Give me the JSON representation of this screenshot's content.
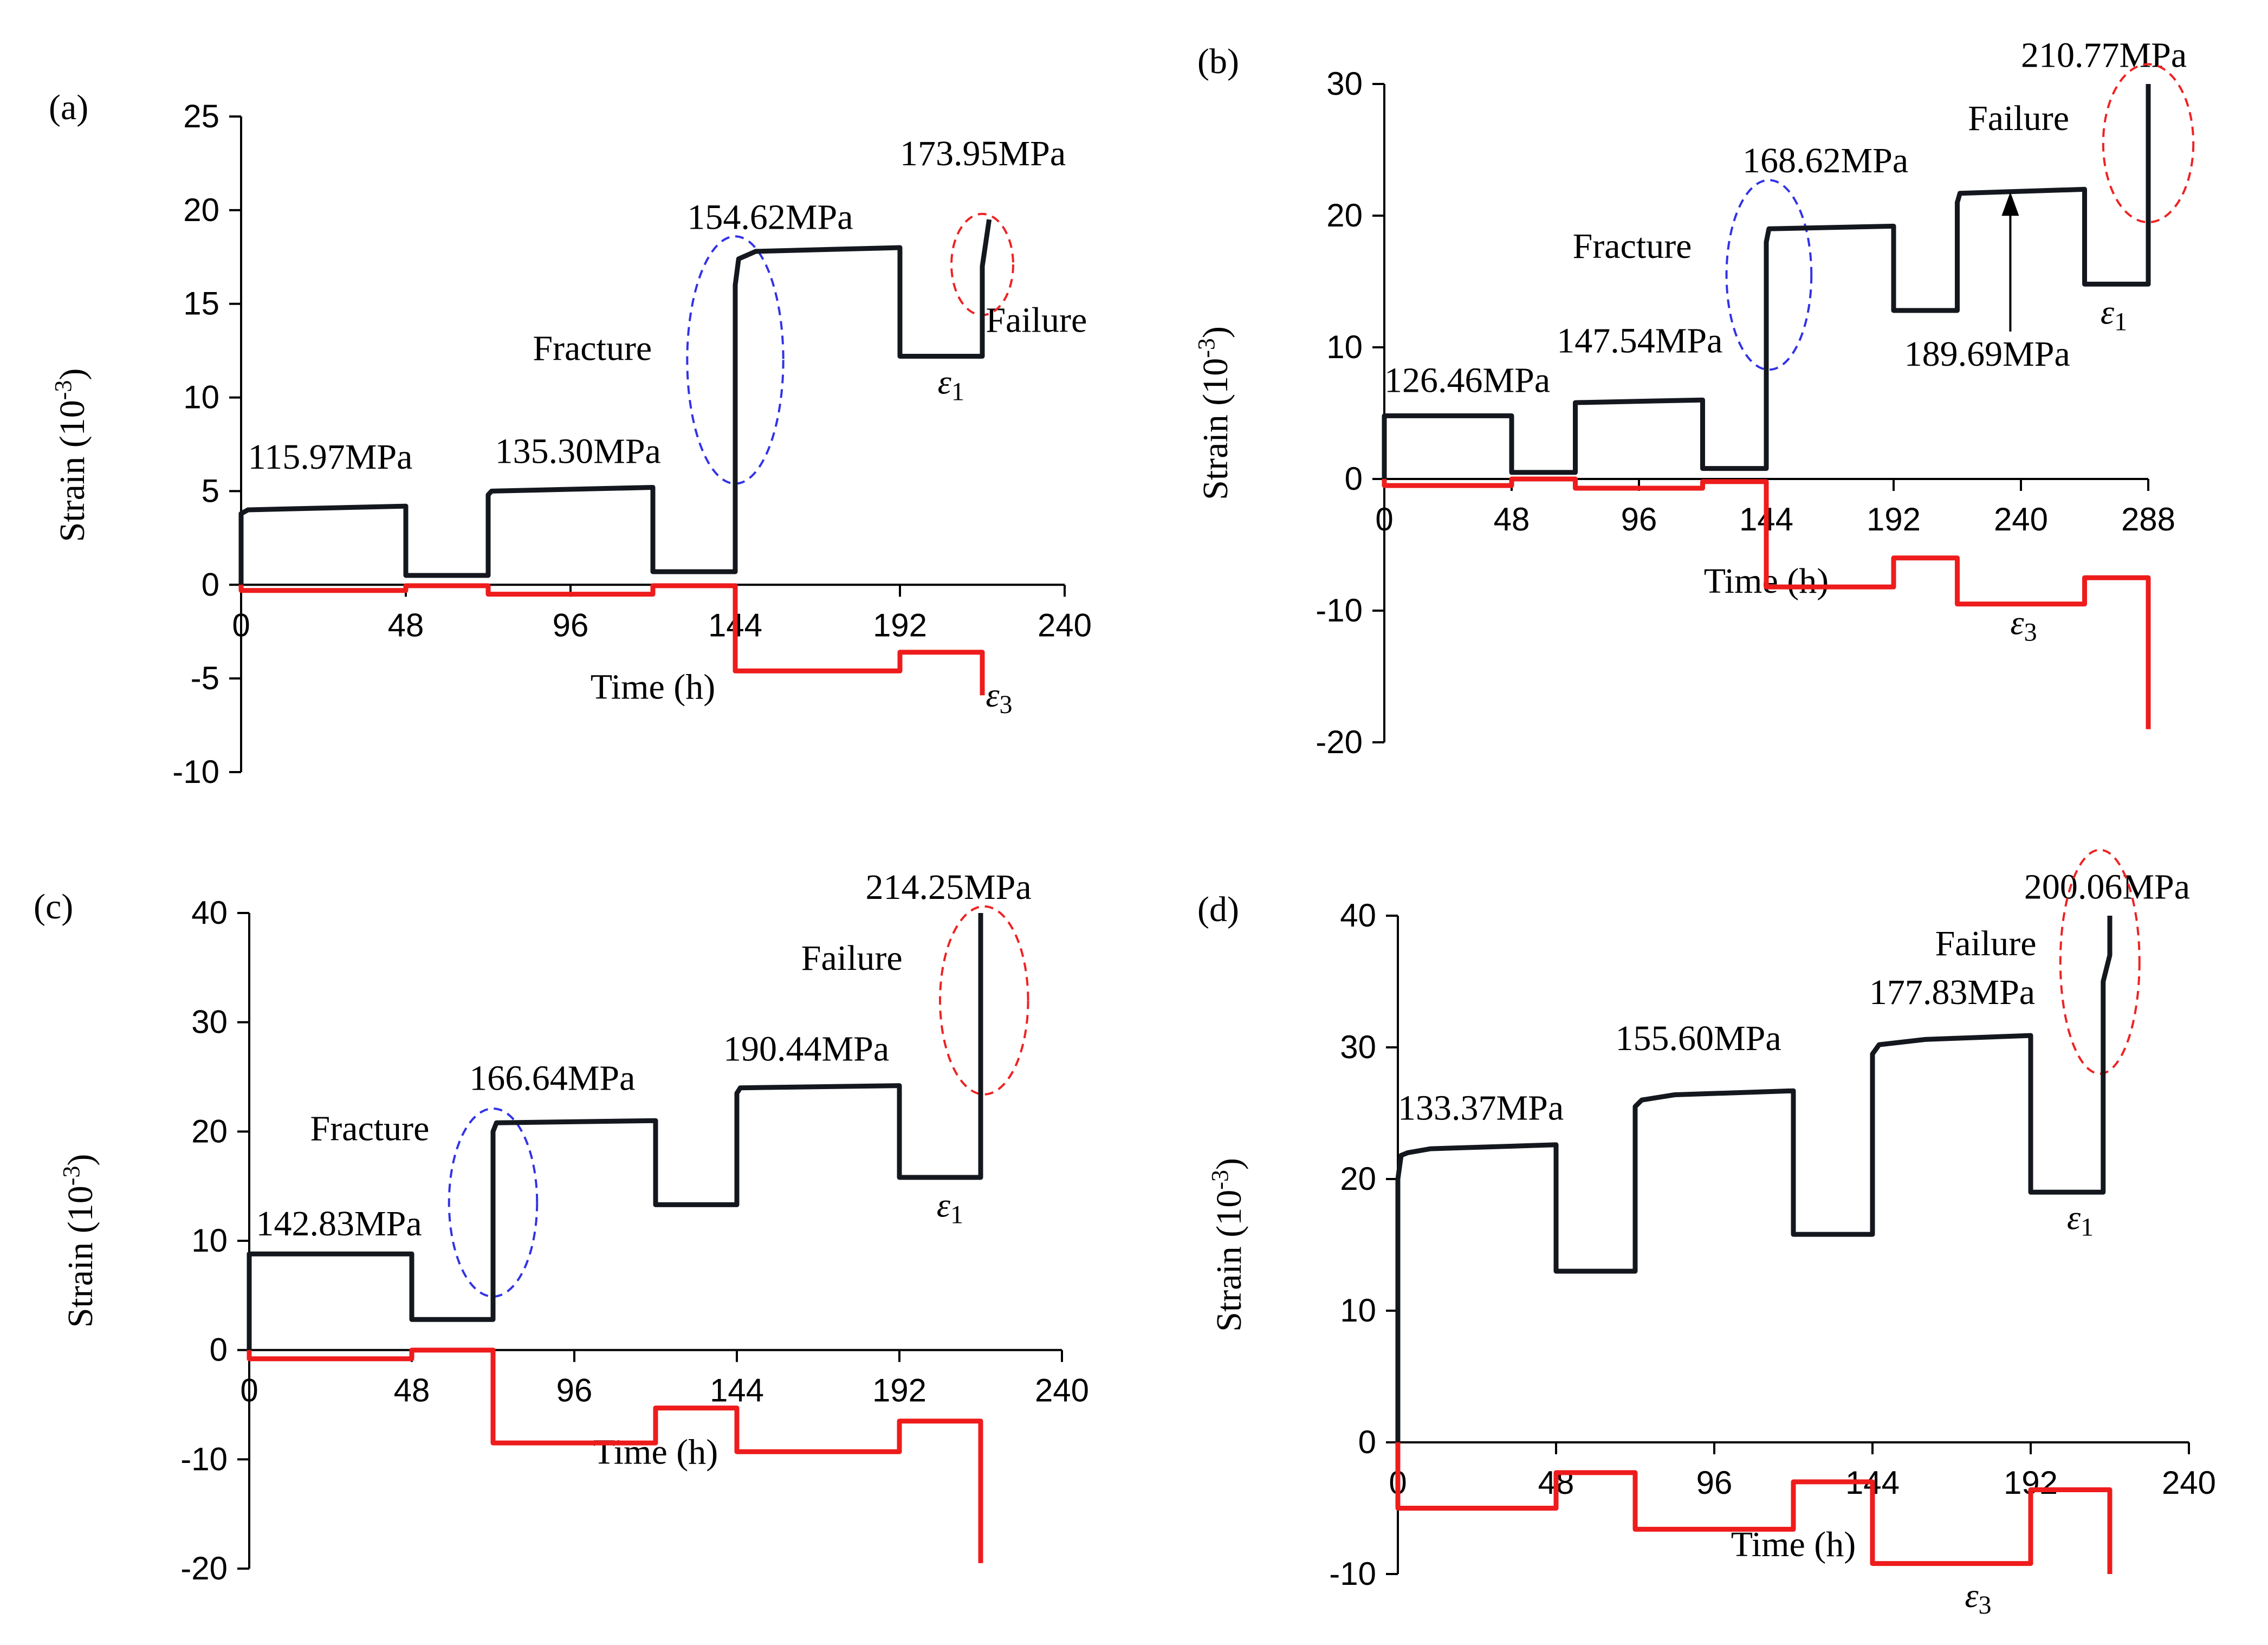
{
  "colors": {
    "e1": "#14181e",
    "e3": "#ee1c1c",
    "fracture_ellipse": "#3232e6",
    "failure_ellipse": "#ee2222",
    "axis": "#000000"
  },
  "chart_data": [
    {
      "panel": "(a)",
      "type": "line",
      "xlabel": "Time (h)",
      "ylabel": "Strain (10",
      "ylabel_sup": "-3",
      "ylabel_end": ")",
      "xlim": [
        0,
        240
      ],
      "xticks": [
        0,
        48,
        96,
        144,
        192,
        240
      ],
      "ylim": [
        -10,
        25
      ],
      "yticks": [
        -10,
        -5,
        0,
        5,
        10,
        15,
        20,
        25
      ],
      "series": [
        {
          "key": "e1",
          "x": [
            0,
            0,
            2,
            48,
            48,
            72,
            72,
            73,
            120,
            120,
            144,
            144,
            145,
            150,
            192,
            192,
            216,
            216,
            218
          ],
          "y": [
            0,
            3.8,
            4,
            4.2,
            0.5,
            0.5,
            4.8,
            5.0,
            5.2,
            0.7,
            0.7,
            16,
            17.4,
            17.8,
            18,
            12.2,
            12.2,
            17,
            19.5
          ]
        },
        {
          "key": "e3",
          "x": [
            0,
            0,
            48,
            48,
            72,
            72,
            120,
            120,
            144,
            144,
            192,
            192,
            216,
            216
          ],
          "y": [
            0,
            -0.3,
            -0.3,
            -0.05,
            -0.05,
            -0.5,
            -0.5,
            -0.05,
            -0.05,
            -4.6,
            -4.6,
            -3.6,
            -3.6,
            -5.9
          ]
        }
      ],
      "annotations": [
        {
          "text": "115.97MPa",
          "x": 2,
          "y": 6.2
        },
        {
          "text": "135.30MPa",
          "x": 74,
          "y": 6.5
        },
        {
          "text": "154.62MPa",
          "x": 130,
          "y": 19
        },
        {
          "text": "173.95MPa",
          "x": 192,
          "y": 22.4
        },
        {
          "text": "Fracture",
          "x": 85,
          "y": 12
        },
        {
          "text": "Failure",
          "x": 217,
          "y": 13.5
        }
      ],
      "fracture_ellipse": {
        "cx": 144,
        "cy": 12,
        "rx": 14,
        "ry": 6.6
      },
      "failure_ellipse": {
        "cx": 216,
        "cy": 17.1,
        "rx": 9,
        "ry": 2.7
      },
      "eps1_label": {
        "x": 203,
        "y": 10.2
      },
      "eps3_label": {
        "x": 217,
        "y": -6.5
      }
    },
    {
      "panel": "(b)",
      "type": "line",
      "xlabel": "Time (h)",
      "ylabel": "Strain (10",
      "ylabel_sup": "-3",
      "ylabel_end": ")",
      "xlim": [
        0,
        288
      ],
      "xticks": [
        0,
        48,
        96,
        144,
        192,
        240,
        288
      ],
      "ylim": [
        -20,
        30
      ],
      "yticks": [
        -20,
        -10,
        0,
        10,
        20,
        30
      ],
      "series": [
        {
          "key": "e1",
          "x": [
            0,
            0,
            48,
            48,
            72,
            72,
            120,
            120,
            144,
            144,
            145,
            192,
            192,
            216,
            216,
            217,
            264,
            264,
            288,
            288
          ],
          "y": [
            0,
            4.8,
            4.8,
            0.5,
            0.5,
            5.8,
            6,
            0.8,
            0.8,
            18,
            19,
            19.2,
            12.8,
            12.8,
            21,
            21.7,
            22,
            14.8,
            14.8,
            30
          ]
        },
        {
          "key": "e3",
          "x": [
            0,
            0,
            48,
            48,
            72,
            72,
            120,
            120,
            144,
            144,
            192,
            192,
            216,
            216,
            264,
            264,
            288,
            288
          ],
          "y": [
            0,
            -0.5,
            -0.5,
            0,
            0,
            -0.7,
            -0.7,
            -0.2,
            -0.2,
            -8.2,
            -8.2,
            -6,
            -6,
            -9.5,
            -9.5,
            -7.5,
            -7.5,
            -19
          ]
        }
      ],
      "annotations": [
        {
          "text": "126.46MPa",
          "x": 0,
          "y": 6.6
        },
        {
          "text": "147.54MPa",
          "x": 65,
          "y": 9.6
        },
        {
          "text": "168.62MPa",
          "x": 135,
          "y": 23.3
        },
        {
          "text": "210.77MPa",
          "x": 240,
          "y": 31.3
        },
        {
          "text": "Fracture",
          "x": 71,
          "y": 16.8
        },
        {
          "text": "Failure",
          "x": 220,
          "y": 26.5
        },
        {
          "text": "189.69MPa",
          "x": 196,
          "y": 8.6
        }
      ],
      "fracture_ellipse": {
        "cx": 145,
        "cy": 15.5,
        "rx": 16,
        "ry": 7.2
      },
      "failure_ellipse": {
        "cx": 288,
        "cy": 25.5,
        "rx": 17,
        "ry": 6
      },
      "arrow": {
        "x": 236,
        "y_from": 11.2,
        "y_to": 21.8
      },
      "eps1_label": {
        "x": 270,
        "y": 11.8
      },
      "eps3_label": {
        "x": 236,
        "y": -11.8
      }
    },
    {
      "panel": "(c)",
      "type": "line",
      "xlabel": "Time (h)",
      "ylabel": "Strain (10",
      "ylabel_sup": "-3",
      "ylabel_end": ")",
      "xlim": [
        0,
        240
      ],
      "xticks": [
        0,
        48,
        96,
        144,
        192,
        240
      ],
      "ylim": [
        -20,
        40
      ],
      "yticks": [
        -20,
        -10,
        0,
        10,
        20,
        30,
        40
      ],
      "series": [
        {
          "key": "e1",
          "x": [
            0,
            0,
            48,
            48,
            72,
            72,
            73,
            120,
            120,
            144,
            144,
            145,
            192,
            192,
            216,
            216
          ],
          "y": [
            0,
            8.8,
            8.8,
            2.8,
            2.8,
            20,
            20.8,
            21,
            13.3,
            13.3,
            23.5,
            24,
            24.2,
            15.8,
            15.8,
            40
          ]
        },
        {
          "key": "e3",
          "x": [
            0,
            0,
            48,
            48,
            72,
            72,
            120,
            120,
            144,
            144,
            192,
            192,
            216,
            216
          ],
          "y": [
            0,
            -0.8,
            -0.8,
            0,
            0,
            -8.5,
            -8.5,
            -5.3,
            -5.3,
            -9.3,
            -9.3,
            -6.5,
            -6.5,
            -19.5
          ]
        }
      ],
      "annotations": [
        {
          "text": "142.83MPa",
          "x": 2,
          "y": 10.5
        },
        {
          "text": "166.64MPa",
          "x": 65,
          "y": 23.8
        },
        {
          "text": "190.44MPa",
          "x": 140,
          "y": 26.5
        },
        {
          "text": "214.25MPa",
          "x": 182,
          "y": 41.3
        },
        {
          "text": "Fracture",
          "x": 18,
          "y": 19.2
        },
        {
          "text": "Failure",
          "x": 163,
          "y": 34.8
        },
        {
          "text": "",
          "x": 0,
          "y": 0
        }
      ],
      "fracture_ellipse": {
        "cx": 72,
        "cy": 13.5,
        "rx": 13,
        "ry": 8.6
      },
      "failure_ellipse": {
        "cx": 217,
        "cy": 32,
        "rx": 13,
        "ry": 8.6
      },
      "eps1_label": {
        "x": 203,
        "y": 12.2
      },
      "eps3_label": null
    },
    {
      "panel": "(d)",
      "type": "line",
      "xlabel": "Time (h)",
      "ylabel": "Strain (10",
      "ylabel_sup": "-3",
      "ylabel_end": ")",
      "xlim": [
        0,
        240
      ],
      "xticks": [
        0,
        48,
        96,
        144,
        192,
        240
      ],
      "ylim": [
        -10,
        40
      ],
      "yticks": [
        -10,
        0,
        10,
        20,
        30,
        40
      ],
      "series": [
        {
          "key": "e1",
          "x": [
            0,
            0,
            1,
            3,
            10,
            48,
            48,
            72,
            72,
            74,
            84,
            120,
            120,
            144,
            144,
            146,
            160,
            192,
            192,
            214,
            214,
            216,
            216
          ],
          "y": [
            0,
            20,
            21.8,
            22,
            22.3,
            22.6,
            13,
            13,
            25.5,
            26,
            26.4,
            26.7,
            15.8,
            15.8,
            29.5,
            30.2,
            30.6,
            30.9,
            19,
            19,
            35,
            37,
            40
          ]
        },
        {
          "key": "e3",
          "x": [
            0,
            0,
            48,
            48,
            72,
            72,
            120,
            120,
            144,
            144,
            192,
            192,
            216,
            216
          ],
          "y": [
            0,
            -5,
            -5,
            -2.3,
            -2.3,
            -6.6,
            -6.6,
            -3,
            -3,
            -9.2,
            -9.2,
            -3.6,
            -3.6,
            -10
          ]
        }
      ],
      "annotations": [
        {
          "text": "133.37MPa",
          "x": 0,
          "y": 24.5
        },
        {
          "text": "155.60MPa",
          "x": 66,
          "y": 29.8
        },
        {
          "text": "177.83MPa",
          "x": 143,
          "y": 33.3
        },
        {
          "text": "200.06MPa",
          "x": 190,
          "y": 41.3
        },
        {
          "text": "Failure",
          "x": 163,
          "y": 37
        },
        {
          "text": "",
          "x": 0,
          "y": 0
        },
        {
          "text": "",
          "x": 0,
          "y": 0
        }
      ],
      "failure_ellipse": {
        "cx": 213,
        "cy": 36.5,
        "rx": 12,
        "ry": 8.5
      },
      "eps1_label": {
        "x": 203,
        "y": 16.2
      },
      "eps3_label": {
        "x": 172,
        "y": -12.5
      }
    }
  ]
}
